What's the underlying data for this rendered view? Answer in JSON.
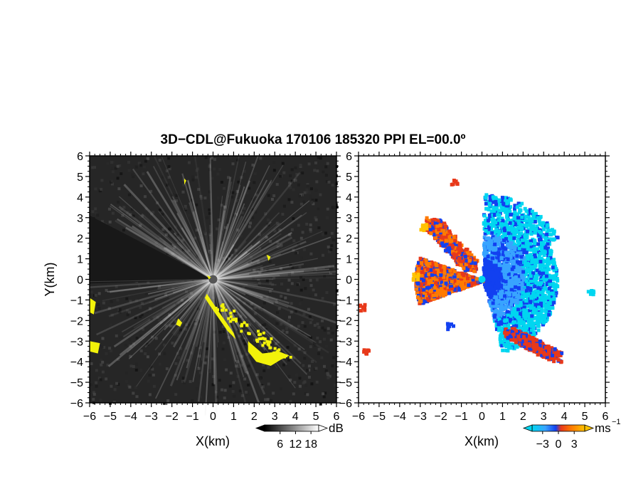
{
  "chart_data": [
    {
      "type": "heatmap",
      "panel": "left",
      "title": "3D−CDL@Fukuoka 170106 185320 PPI EL=00.0º",
      "xlabel": "X(km)",
      "ylabel": "Y(km)",
      "xlim": [
        -6,
        6
      ],
      "ylim": [
        -6,
        6
      ],
      "ticks": [
        "−6",
        "−5",
        "−4",
        "−3",
        "−2",
        "−1",
        "0",
        "1",
        "2",
        "3",
        "4",
        "5",
        "6"
      ],
      "colorbar": {
        "unit": "dB",
        "tick_labels": [
          "6",
          "12",
          "18"
        ],
        "range": [
          0,
          21
        ]
      },
      "colors": {
        "background": "#262626",
        "echo": "#e8e8e8",
        "flag": "#f2f20a"
      }
    },
    {
      "type": "heatmap",
      "panel": "right",
      "xlabel": "X(km)",
      "ylabel": "",
      "xlim": [
        -6,
        6
      ],
      "ylim": [
        -6,
        6
      ],
      "ticks": [
        "−6",
        "−5",
        "−4",
        "−3",
        "−2",
        "−1",
        "0",
        "1",
        "2",
        "3",
        "4",
        "5",
        "6"
      ],
      "colorbar": {
        "unit": "ms",
        "unit_sup": "−1",
        "tick_labels": [
          "−3",
          "0",
          "3"
        ],
        "range": [
          -5,
          5
        ]
      },
      "colors": {
        "cyan": "#00d6f0",
        "light_blue": "#38a4ff",
        "blue": "#1240f0",
        "red": "#e8391a",
        "orange": "#ff7b00",
        "yellow": "#ffc300"
      }
    }
  ]
}
